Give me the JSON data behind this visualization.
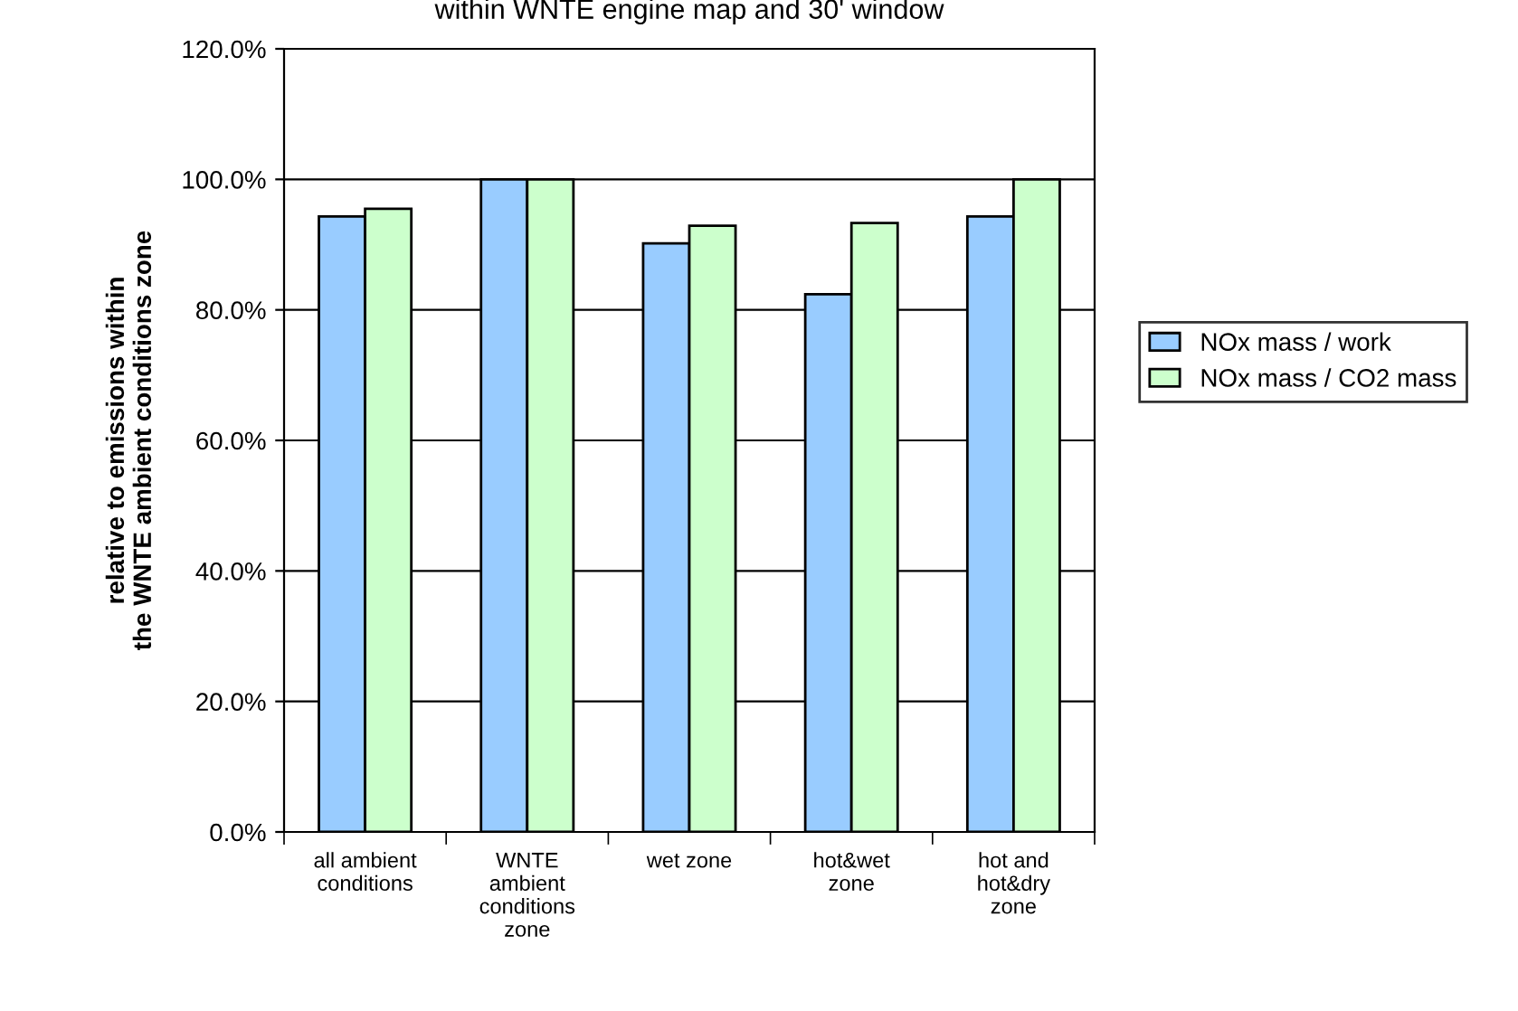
{
  "chart_data": {
    "type": "bar",
    "title": "within WNTE engine map and 30' window",
    "ylabel": "relative to emissions within\nthe WNTE ambient conditions zone",
    "categories": [
      "all ambient\nconditions",
      "WNTE\nambient\nconditions\nzone",
      "wet zone",
      "hot&wet\nzone",
      "hot and\nhot&dry\nzone"
    ],
    "series": [
      {
        "name": "NOx mass / work",
        "color": "#99ccff",
        "values": [
          94.3,
          100,
          90.2,
          82.4,
          94.3
        ]
      },
      {
        "name": "NOx mass / CO2 mass",
        "color": "#ccffcc",
        "values": [
          95.5,
          100,
          92.9,
          93.3,
          100
        ]
      }
    ],
    "ylim": [
      0,
      120
    ],
    "yticks": [
      {
        "value": 0,
        "label": "0.0%"
      },
      {
        "value": 20,
        "label": "20.0%"
      },
      {
        "value": 40,
        "label": "40.0%"
      },
      {
        "value": 60,
        "label": "60.0%"
      },
      {
        "value": 80,
        "label": "80.0%"
      },
      {
        "value": 100,
        "label": "100.0%"
      },
      {
        "value": 120,
        "label": "120.0%"
      }
    ],
    "grid": "y",
    "legend": "right"
  }
}
